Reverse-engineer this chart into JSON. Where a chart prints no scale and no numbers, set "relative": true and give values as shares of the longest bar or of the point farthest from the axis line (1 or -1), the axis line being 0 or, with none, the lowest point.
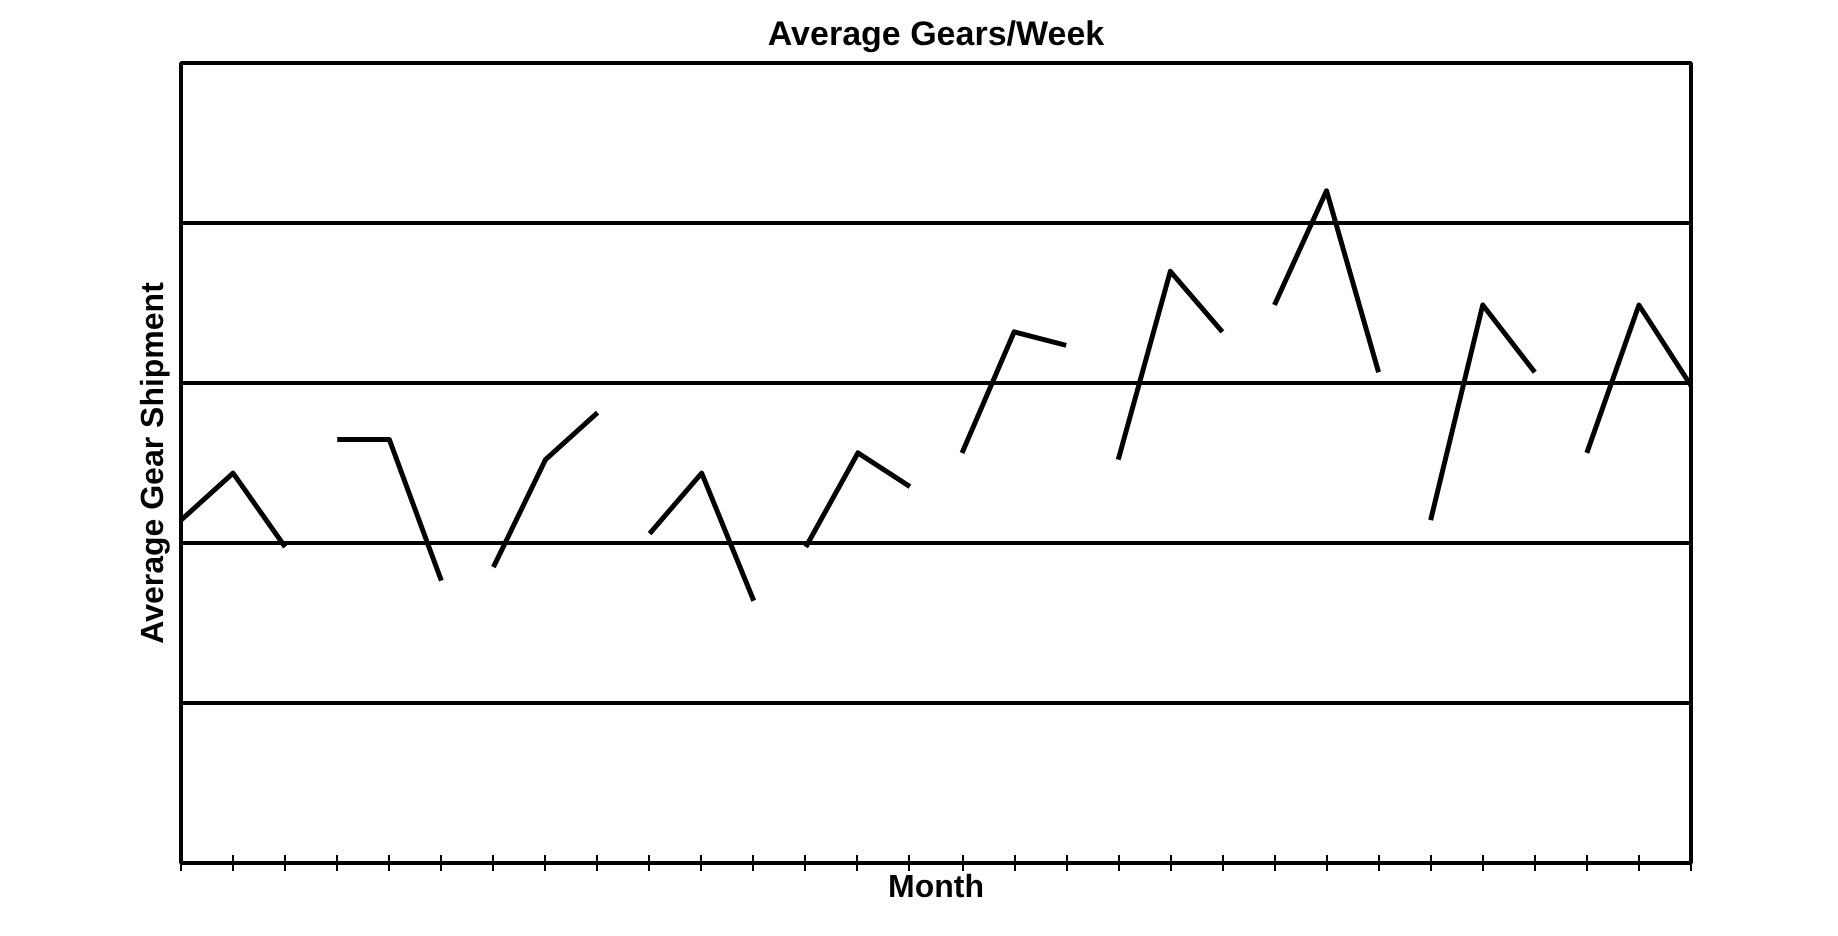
{
  "chart_data": {
    "type": "line",
    "title": "Average Gears/Week",
    "xlabel": "Month",
    "ylabel": "Average Gear Shipment",
    "relative": true,
    "grid": "y",
    "marker": "none",
    "line_style": "solid",
    "categories": [
      null,
      null,
      null,
      null,
      null,
      null,
      null,
      null,
      null,
      null,
      null,
      null,
      null,
      null,
      null,
      null,
      null,
      null,
      null,
      null,
      null,
      null,
      null,
      null,
      null,
      null,
      null,
      null,
      null,
      null
    ],
    "series": [
      {
        "color": "#000000",
        "values": [
          0.51,
          0.58,
          0.47,
          null,
          null,
          null,
          null,
          null,
          null,
          null,
          null,
          null,
          null,
          null,
          null,
          null,
          null,
          null,
          null,
          null,
          null,
          null,
          null,
          null,
          null,
          null,
          null,
          null,
          null,
          null
        ]
      },
      {
        "color": "#000000",
        "values": [
          null,
          null,
          null,
          0.63,
          0.63,
          0.42,
          null,
          null,
          null,
          null,
          null,
          null,
          null,
          null,
          null,
          null,
          null,
          null,
          null,
          null,
          null,
          null,
          null,
          null,
          null,
          null,
          null,
          null,
          null,
          null
        ]
      },
      {
        "color": "#000000",
        "values": [
          null,
          null,
          null,
          null,
          null,
          null,
          0.44,
          0.6,
          0.67,
          null,
          null,
          null,
          null,
          null,
          null,
          null,
          null,
          null,
          null,
          null,
          null,
          null,
          null,
          null,
          null,
          null,
          null,
          null,
          null,
          null
        ]
      },
      {
        "color": "#000000",
        "values": [
          null,
          null,
          null,
          null,
          null,
          null,
          null,
          null,
          null,
          0.49,
          0.58,
          0.39,
          null,
          null,
          null,
          null,
          null,
          null,
          null,
          null,
          null,
          null,
          null,
          null,
          null,
          null,
          null,
          null,
          null,
          null
        ]
      },
      {
        "color": "#000000",
        "values": [
          null,
          null,
          null,
          null,
          null,
          null,
          null,
          null,
          null,
          null,
          null,
          null,
          0.47,
          0.61,
          0.56,
          null,
          null,
          null,
          null,
          null,
          null,
          null,
          null,
          null,
          null,
          null,
          null,
          null,
          null,
          null
        ]
      },
      {
        "color": "#000000",
        "values": [
          null,
          null,
          null,
          null,
          null,
          null,
          null,
          null,
          null,
          null,
          null,
          null,
          null,
          null,
          null,
          0.61,
          0.79,
          0.77,
          null,
          null,
          null,
          null,
          null,
          null,
          null,
          null,
          null,
          null,
          null,
          null
        ]
      },
      {
        "color": "#000000",
        "values": [
          null,
          null,
          null,
          null,
          null,
          null,
          null,
          null,
          null,
          null,
          null,
          null,
          null,
          null,
          null,
          null,
          null,
          null,
          0.6,
          0.88,
          0.79,
          null,
          null,
          null,
          null,
          null,
          null,
          null,
          null,
          null
        ]
      },
      {
        "color": "#000000",
        "values": [
          null,
          null,
          null,
          null,
          null,
          null,
          null,
          null,
          null,
          null,
          null,
          null,
          null,
          null,
          null,
          null,
          null,
          null,
          null,
          null,
          null,
          0.83,
          1,
          0.73,
          null,
          null,
          null,
          null,
          null,
          null
        ]
      },
      {
        "color": "#000000",
        "values": [
          null,
          null,
          null,
          null,
          null,
          null,
          null,
          null,
          null,
          null,
          null,
          null,
          null,
          null,
          null,
          null,
          null,
          null,
          null,
          null,
          null,
          null,
          null,
          null,
          0.51,
          0.83,
          0.73,
          null,
          null,
          null
        ]
      },
      {
        "color": "#000000",
        "values": [
          null,
          null,
          null,
          null,
          null,
          null,
          null,
          null,
          null,
          null,
          null,
          null,
          null,
          null,
          null,
          null,
          null,
          null,
          null,
          null,
          null,
          null,
          null,
          null,
          null,
          null,
          null,
          0.61,
          0.83,
          0.71
        ]
      }
    ]
  }
}
